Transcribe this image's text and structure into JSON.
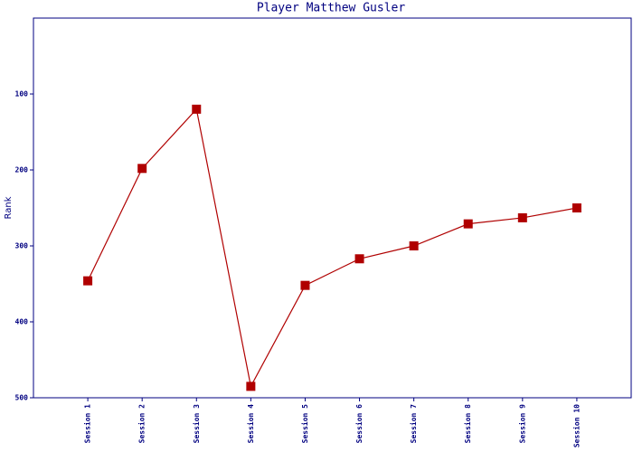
{
  "chart_data": {
    "type": "line",
    "title": "Player Matthew Gusler",
    "y_label": "Rank",
    "categories": [
      "Session 1",
      "Session 2",
      "Session 3",
      "Session 4",
      "Session 5",
      "Session 6",
      "Session 7",
      "Session 8",
      "Session 9",
      "Session 10"
    ],
    "series": [
      {
        "name": "Rank",
        "color": "#b00000",
        "values": [
          346,
          198,
          120,
          485,
          352,
          317,
          300,
          271,
          263,
          250
        ]
      }
    ],
    "ylim": [
      0,
      500
    ],
    "yticks": [
      100,
      200,
      300,
      400,
      500
    ],
    "y_inverted": true,
    "axis_color": "#000080"
  }
}
